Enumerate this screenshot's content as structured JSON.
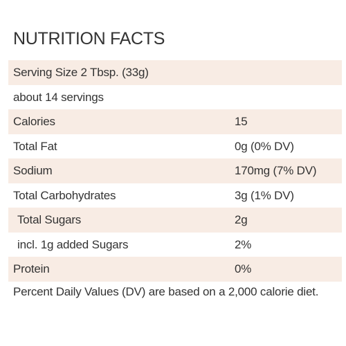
{
  "title": "NUTRITION FACTS",
  "serving_size": "Serving Size 2 Tbsp. (33g)",
  "servings": "about 14 servings",
  "nutrients": [
    {
      "label": "Calories",
      "value": "15"
    },
    {
      "label": "Total Fat",
      "value": "0g (0% DV)"
    },
    {
      "label": "Sodium",
      "value": "170mg (7% DV)"
    },
    {
      "label": "Total Carbohydrates",
      "value": "3g (1% DV)"
    },
    {
      "label": "Total Sugars",
      "value": "2g"
    },
    {
      "label": "incl. 1g added Sugars",
      "value": "2%"
    },
    {
      "label": "Protein",
      "value": "0%"
    }
  ],
  "footnote": "Percent Daily Values (DV) are based on a 2,000 calorie diet.",
  "colors": {
    "shade": "#f8ece4",
    "text": "#333333"
  }
}
